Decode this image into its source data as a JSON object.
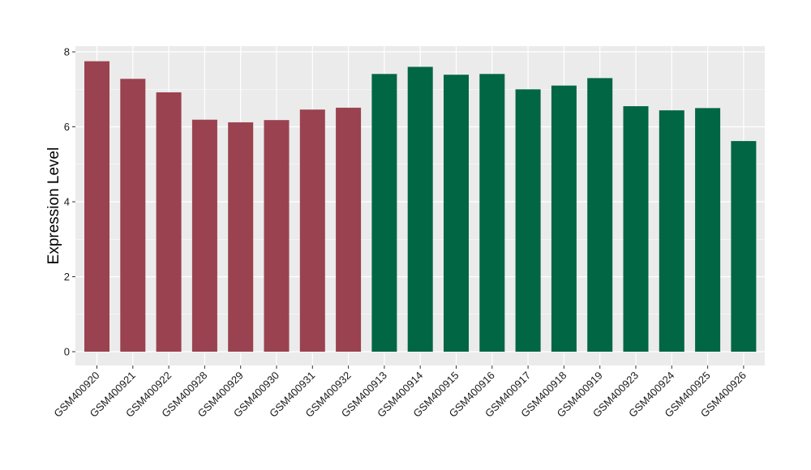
{
  "chart_data": {
    "type": "bar",
    "title": "",
    "xlabel": "",
    "ylabel": "Expression Level",
    "ylim": [
      0,
      8.3
    ],
    "yticks": [
      0,
      2,
      4,
      6,
      8
    ],
    "ytick_labels": [
      "0",
      "2",
      "4",
      "6",
      "8"
    ],
    "grid": true,
    "legend": "none",
    "categories": [
      "GSM400920",
      "GSM400921",
      "GSM400922",
      "GSM400928",
      "GSM400929",
      "GSM400930",
      "GSM400931",
      "GSM400932",
      "GSM400913",
      "GSM400914",
      "GSM400915",
      "GSM400916",
      "GSM400917",
      "GSM400918",
      "GSM400919",
      "GSM400923",
      "GSM400924",
      "GSM400925",
      "GSM400926"
    ],
    "values": [
      7.75,
      7.28,
      6.92,
      6.19,
      6.12,
      6.18,
      6.46,
      6.51,
      7.41,
      7.6,
      7.39,
      7.41,
      7.0,
      7.1,
      7.3,
      6.55,
      6.44,
      6.5,
      5.62
    ],
    "group_colors": [
      "#9a4250",
      "#9a4250",
      "#9a4250",
      "#9a4250",
      "#9a4250",
      "#9a4250",
      "#9a4250",
      "#9a4250",
      "#006644",
      "#006644",
      "#006644",
      "#006644",
      "#006644",
      "#006644",
      "#006644",
      "#006644",
      "#006644",
      "#006644",
      "#006644"
    ],
    "panel_background": "#ebebeb",
    "gridline_color": "#ffffff"
  }
}
